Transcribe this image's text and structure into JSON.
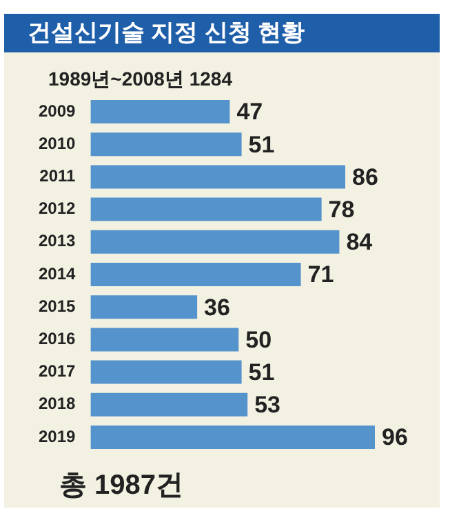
{
  "chart_data": {
    "type": "bar",
    "orientation": "horizontal",
    "title": "건설신기술 지정 신청 현황",
    "categories": [
      "2009",
      "2010",
      "2011",
      "2012",
      "2013",
      "2014",
      "2015",
      "2016",
      "2017",
      "2018",
      "2019"
    ],
    "values": [
      47,
      51,
      86,
      78,
      84,
      71,
      36,
      50,
      51,
      53,
      96
    ],
    "color": "#5593cc",
    "data_labels": true,
    "legend": false,
    "annotations": [
      "1989년~2008년 1284",
      "총 1987건"
    ]
  }
}
